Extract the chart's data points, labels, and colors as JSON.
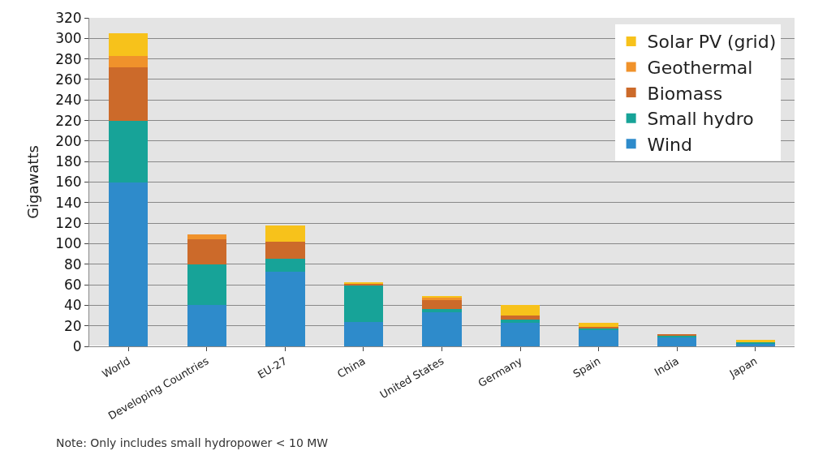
{
  "chart_data": {
    "type": "bar",
    "stacked": true,
    "ylabel": "Gigawatts",
    "categories": [
      "World",
      "Developing Countries",
      "EU-27",
      "China",
      "United States",
      "Germany",
      "Spain",
      "India",
      "Japan"
    ],
    "series": [
      {
        "name": "Wind",
        "color": "#2e8bcb",
        "values": [
          160,
          40,
          73,
          24,
          33,
          23,
          16,
          9,
          2
        ]
      },
      {
        "name": "Small hydro",
        "color": "#17a398",
        "values": [
          60,
          40,
          12,
          35,
          3,
          3,
          2,
          2,
          2
        ]
      },
      {
        "name": "Biomass",
        "color": "#cc6a2a",
        "values": [
          52,
          24,
          17,
          2,
          9,
          4,
          1,
          1,
          0
        ]
      },
      {
        "name": "Geothermal",
        "color": "#f0922b",
        "values": [
          11,
          5,
          0,
          0,
          3,
          0,
          0,
          0,
          0
        ]
      },
      {
        "name": "Solar PV (grid)",
        "color": "#f7c21b",
        "values": [
          22,
          0,
          16,
          1,
          1,
          10,
          4,
          0,
          2
        ]
      }
    ],
    "ylim": [
      0,
      320
    ],
    "yticks": [
      0,
      20,
      40,
      60,
      80,
      100,
      120,
      140,
      160,
      180,
      200,
      220,
      240,
      260,
      280,
      300,
      320
    ],
    "grid": "y",
    "legend": "top right",
    "annotations": [
      "Note: Only includes small hydropower < 10 MW"
    ]
  }
}
